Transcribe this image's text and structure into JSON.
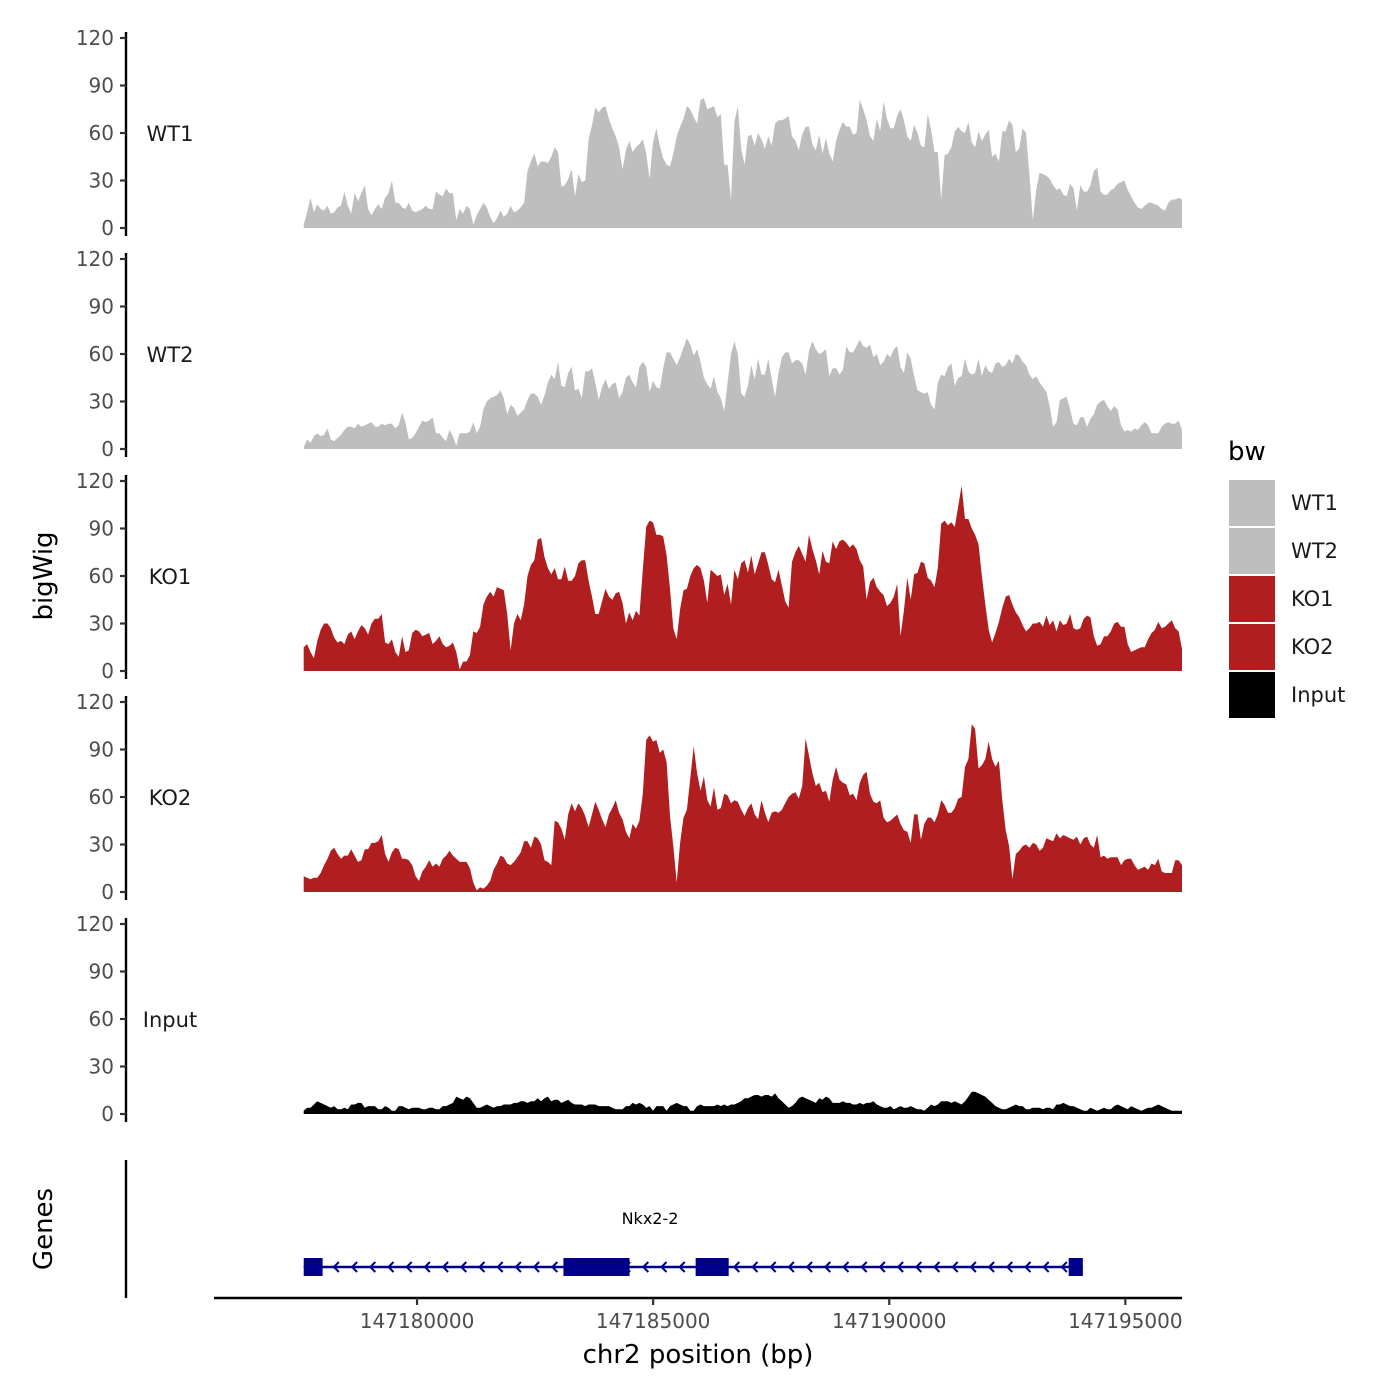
{
  "chart_data": {
    "type": "area",
    "xlabel": "chr2 position (bp)",
    "ylabel_tracks": "bigWig",
    "ylabel_genes": "Genes",
    "xlim": [
      147175700,
      147196200
    ],
    "x_start": 147177600,
    "x_end": 147196200,
    "x_ticks": [
      {
        "value": 147180000,
        "label": "147180000"
      },
      {
        "value": 147185000,
        "label": "147185000"
      },
      {
        "value": 147190000,
        "label": "147190000"
      },
      {
        "value": 147195000,
        "label": "147195000"
      }
    ],
    "ylim": [
      0,
      120
    ],
    "y_ticks": [
      {
        "value": 0,
        "label": "0"
      },
      {
        "value": 30,
        "label": "30"
      },
      {
        "value": 60,
        "label": "60"
      },
      {
        "value": 90,
        "label": "90"
      },
      {
        "value": 120,
        "label": "120"
      }
    ],
    "legend_title": "bw",
    "legend_position": "right",
    "series": [
      {
        "name": "WT1",
        "color": "#bebebe",
        "values": [
          2,
          10,
          19,
          10,
          15,
          12,
          11,
          14,
          9,
          10,
          13,
          14,
          23,
          14,
          9,
          22,
          17,
          22,
          27,
          12,
          8,
          12,
          15,
          12,
          19,
          22,
          30,
          16,
          16,
          13,
          12,
          16,
          11,
          10,
          11,
          12,
          14,
          12,
          12,
          23,
          21,
          20,
          25,
          22,
          22,
          5,
          12,
          9,
          14,
          12,
          2,
          8,
          12,
          16,
          13,
          7,
          3,
          6,
          11,
          7,
          9,
          14,
          10,
          11,
          13,
          16,
          36,
          42,
          47,
          39,
          42,
          42,
          41,
          45,
          51,
          48,
          26,
          27,
          31,
          37,
          20,
          34,
          29,
          30,
          56,
          65,
          76,
          73,
          76,
          77,
          69,
          63,
          58,
          51,
          37,
          49,
          55,
          48,
          51,
          53,
          56,
          47,
          31,
          54,
          63,
          52,
          44,
          40,
          39,
          47,
          58,
          64,
          69,
          77,
          75,
          70,
          66,
          81,
          82,
          75,
          76,
          77,
          70,
          72,
          40,
          40,
          18,
          67,
          77,
          50,
          40,
          58,
          59,
          52,
          60,
          56,
          50,
          58,
          52,
          66,
          68,
          68,
          69,
          71,
          58,
          55,
          49,
          59,
          64,
          64,
          53,
          49,
          59,
          47,
          57,
          47,
          42,
          55,
          62,
          67,
          64,
          64,
          59,
          60,
          81,
          75,
          68,
          58,
          55,
          69,
          61,
          80,
          69,
          63,
          63,
          71,
          75,
          68,
          58,
          55,
          65,
          60,
          52,
          51,
          72,
          62,
          48,
          48,
          18,
          46,
          47,
          51,
          61,
          64,
          61,
          60,
          67,
          54,
          51,
          61,
          55,
          59,
          62,
          45,
          47,
          42,
          61,
          61,
          68,
          65,
          48,
          50,
          63,
          60,
          34,
          5,
          24,
          35,
          34,
          33,
          31,
          27,
          24,
          25,
          21,
          20,
          28,
          25,
          11,
          27,
          23,
          23,
          27,
          36,
          38,
          23,
          21,
          21,
          24,
          25,
          28,
          29,
          30,
          24,
          20,
          16,
          13,
          12,
          14,
          16,
          16,
          15,
          14,
          12,
          11,
          16,
          18,
          18,
          19,
          18
        ]
      },
      {
        "name": "WT2",
        "color": "#bebebe",
        "values": [
          1,
          6,
          4,
          8,
          10,
          8,
          9,
          13,
          6,
          5,
          7,
          9,
          12,
          14,
          14,
          13,
          16,
          14,
          15,
          16,
          17,
          14,
          14,
          16,
          15,
          16,
          16,
          13,
          15,
          23,
          17,
          6,
          7,
          10,
          14,
          18,
          17,
          18,
          20,
          10,
          10,
          7,
          5,
          12,
          8,
          2,
          10,
          10,
          10,
          11,
          17,
          10,
          14,
          25,
          30,
          32,
          33,
          34,
          37,
          32,
          22,
          28,
          26,
          21,
          23,
          25,
          31,
          35,
          35,
          33,
          28,
          34,
          42,
          47,
          44,
          55,
          40,
          39,
          48,
          52,
          37,
          38,
          32,
          49,
          49,
          51,
          42,
          31,
          39,
          44,
          38,
          41,
          42,
          32,
          36,
          45,
          47,
          42,
          39,
          52,
          55,
          52,
          36,
          43,
          39,
          38,
          51,
          61,
          61,
          57,
          53,
          58,
          64,
          70,
          66,
          59,
          63,
          55,
          45,
          41,
          38,
          46,
          36,
          32,
          24,
          42,
          60,
          68,
          60,
          35,
          33,
          40,
          53,
          44,
          57,
          47,
          47,
          57,
          44,
          33,
          48,
          58,
          61,
          61,
          54,
          56,
          56,
          54,
          47,
          62,
          68,
          63,
          60,
          61,
          63,
          46,
          51,
          51,
          47,
          50,
          65,
          61,
          61,
          65,
          69,
          65,
          64,
          66,
          58,
          60,
          53,
          55,
          60,
          58,
          63,
          65,
          52,
          48,
          61,
          57,
          46,
          37,
          36,
          35,
          36,
          28,
          25,
          42,
          47,
          46,
          52,
          54,
          40,
          45,
          46,
          57,
          49,
          47,
          48,
          57,
          46,
          53,
          49,
          48,
          54,
          55,
          52,
          53,
          57,
          54,
          60,
          59,
          55,
          53,
          47,
          44,
          46,
          42,
          39,
          36,
          27,
          14,
          17,
          31,
          32,
          33,
          25,
          16,
          15,
          20,
          20,
          14,
          19,
          22,
          28,
          30,
          31,
          27,
          24,
          27,
          25,
          15,
          11,
          12,
          11,
          13,
          12,
          15,
          17,
          15,
          10,
          10,
          10,
          14,
          16,
          17,
          16,
          16,
          18,
          12
        ]
      },
      {
        "name": "KO1",
        "color": "#b11e20",
        "values": [
          15,
          17,
          12,
          8,
          19,
          26,
          30,
          30,
          27,
          21,
          18,
          19,
          17,
          23,
          25,
          20,
          25,
          29,
          27,
          23,
          30,
          33,
          33,
          36,
          18,
          17,
          20,
          12,
          9,
          22,
          12,
          13,
          24,
          26,
          25,
          22,
          23,
          24,
          17,
          19,
          22,
          17,
          15,
          16,
          18,
          12,
          1,
          6,
          6,
          10,
          25,
          24,
          28,
          42,
          47,
          50,
          47,
          53,
          52,
          51,
          36,
          13,
          30,
          36,
          32,
          42,
          60,
          67,
          70,
          83,
          84,
          72,
          65,
          61,
          65,
          58,
          58,
          66,
          57,
          57,
          60,
          68,
          70,
          70,
          57,
          47,
          36,
          36,
          44,
          52,
          47,
          45,
          49,
          50,
          43,
          30,
          37,
          32,
          38,
          35,
          64,
          91,
          95,
          94,
          86,
          86,
          85,
          73,
          52,
          27,
          20,
          39,
          51,
          52,
          60,
          65,
          67,
          65,
          57,
          43,
          64,
          62,
          60,
          61,
          48,
          55,
          42,
          64,
          58,
          68,
          70,
          62,
          73,
          61,
          68,
          75,
          75,
          67,
          58,
          56,
          64,
          54,
          44,
          40,
          69,
          75,
          79,
          74,
          69,
          86,
          77,
          70,
          61,
          76,
          69,
          68,
          82,
          77,
          82,
          83,
          81,
          78,
          80,
          77,
          70,
          66,
          45,
          56,
          59,
          53,
          50,
          48,
          41,
          43,
          47,
          55,
          22,
          38,
          59,
          45,
          61,
          62,
          69,
          68,
          59,
          57,
          53,
          65,
          93,
          95,
          92,
          94,
          91,
          104,
          117,
          96,
          96,
          90,
          86,
          80,
          60,
          42,
          26,
          18,
          24,
          31,
          40,
          47,
          48,
          42,
          37,
          34,
          29,
          25,
          27,
          30,
          30,
          31,
          28,
          35,
          29,
          32,
          25,
          32,
          29,
          30,
          36,
          27,
          26,
          27,
          33,
          35,
          34,
          22,
          16,
          17,
          22,
          22,
          25,
          30,
          31,
          28,
          28,
          17,
          12,
          13,
          14,
          15,
          15,
          20,
          24,
          26,
          31,
          27,
          28,
          30,
          32,
          27,
          25,
          14
        ]
      },
      {
        "name": "KO2",
        "color": "#b11e20",
        "values": [
          10,
          9,
          8,
          9,
          9,
          12,
          17,
          21,
          26,
          28,
          24,
          21,
          23,
          23,
          27,
          23,
          19,
          20,
          27,
          27,
          31,
          31,
          32,
          36,
          24,
          19,
          25,
          28,
          27,
          21,
          21,
          20,
          17,
          10,
          7,
          13,
          16,
          20,
          16,
          18,
          16,
          21,
          23,
          26,
          23,
          21,
          19,
          19,
          19,
          15,
          6,
          1,
          3,
          2,
          4,
          7,
          14,
          18,
          23,
          22,
          18,
          17,
          19,
          22,
          25,
          32,
          32,
          28,
          35,
          34,
          30,
          20,
          19,
          17,
          45,
          44,
          40,
          33,
          49,
          56,
          51,
          56,
          53,
          48,
          41,
          49,
          57,
          52,
          46,
          41,
          49,
          53,
          58,
          50,
          46,
          38,
          34,
          43,
          40,
          45,
          62,
          96,
          99,
          95,
          96,
          88,
          90,
          82,
          48,
          29,
          6,
          31,
          47,
          52,
          72,
          92,
          75,
          64,
          73,
          58,
          54,
          66,
          52,
          53,
          62,
          61,
          56,
          58,
          57,
          52,
          48,
          53,
          56,
          49,
          46,
          58,
          50,
          44,
          50,
          51,
          50,
          52,
          56,
          60,
          62,
          63,
          59,
          67,
          97,
          86,
          75,
          67,
          69,
          63,
          64,
          57,
          71,
          79,
          71,
          69,
          68,
          61,
          62,
          58,
          69,
          74,
          76,
          62,
          57,
          56,
          58,
          47,
          44,
          45,
          47,
          49,
          43,
          39,
          38,
          31,
          49,
          49,
          33,
          43,
          47,
          47,
          44,
          49,
          58,
          55,
          50,
          50,
          53,
          59,
          60,
          79,
          84,
          106,
          103,
          78,
          80,
          84,
          95,
          84,
          79,
          83,
          58,
          39,
          29,
          8,
          24,
          26,
          29,
          30,
          28,
          31,
          30,
          26,
          28,
          34,
          33,
          32,
          37,
          34,
          36,
          35,
          34,
          33,
          35,
          30,
          34,
          35,
          30,
          28,
          36,
          22,
          23,
          21,
          22,
          22,
          22,
          17,
          20,
          21,
          21,
          17,
          14,
          15,
          16,
          14,
          18,
          17,
          21,
          13,
          12,
          12,
          12,
          20,
          20,
          17
        ]
      },
      {
        "name": "Input",
        "color": "#000000",
        "values": [
          2,
          4,
          4,
          6,
          8,
          7,
          6,
          5,
          4,
          5,
          3,
          3,
          4,
          3,
          6,
          6,
          7,
          7,
          4,
          5,
          5,
          5,
          3,
          3,
          5,
          4,
          2,
          2,
          5,
          5,
          4,
          3,
          4,
          4,
          4,
          3,
          3,
          4,
          4,
          3,
          3,
          5,
          5,
          6,
          7,
          11,
          10,
          9,
          11,
          10,
          7,
          4,
          4,
          5,
          6,
          5,
          4,
          5,
          5,
          6,
          6,
          6,
          7,
          7,
          8,
          8,
          7,
          8,
          8,
          10,
          8,
          10,
          11,
          8,
          9,
          9,
          7,
          8,
          9,
          7,
          6,
          6,
          6,
          5,
          6,
          6,
          6,
          5,
          5,
          5,
          5,
          4,
          3,
          3,
          3,
          5,
          5,
          7,
          6,
          7,
          6,
          4,
          5,
          2,
          5,
          5,
          5,
          2,
          5,
          6,
          7,
          6,
          5,
          5,
          2,
          2,
          5,
          6,
          5,
          5,
          5,
          5,
          6,
          5,
          6,
          5,
          6,
          6,
          7,
          8,
          10,
          10,
          11,
          12,
          12,
          11,
          12,
          12,
          11,
          13,
          10,
          8,
          6,
          4,
          5,
          7,
          10,
          11,
          10,
          9,
          8,
          7,
          10,
          9,
          11,
          10,
          7,
          7,
          7,
          8,
          7,
          7,
          6,
          6,
          7,
          6,
          7,
          7,
          8,
          6,
          5,
          4,
          4,
          5,
          3,
          4,
          5,
          4,
          4,
          5,
          4,
          3,
          3,
          2,
          4,
          6,
          5,
          6,
          8,
          8,
          8,
          7,
          8,
          7,
          6,
          8,
          11,
          14,
          14,
          13,
          12,
          11,
          9,
          7,
          5,
          4,
          3,
          3,
          4,
          5,
          6,
          5,
          5,
          3,
          3,
          4,
          4,
          4,
          3,
          4,
          4,
          3,
          6,
          6,
          7,
          6,
          5,
          5,
          4,
          3,
          2,
          2,
          4,
          3,
          2,
          3,
          4,
          3,
          3,
          5,
          6,
          5,
          4,
          3,
          5,
          4,
          3,
          2,
          3,
          4,
          4,
          5,
          6,
          5,
          4,
          3,
          2,
          2,
          2,
          2
        ]
      }
    ],
    "gene": {
      "name": "Nkx2-2",
      "strand": "-",
      "color": "#00008b",
      "start": 147177600,
      "end": 147194100,
      "exons": [
        [
          147177600,
          147178000
        ],
        [
          147183100,
          147184500
        ],
        [
          147185900,
          147186600
        ],
        [
          147193800,
          147194100
        ]
      ]
    }
  }
}
